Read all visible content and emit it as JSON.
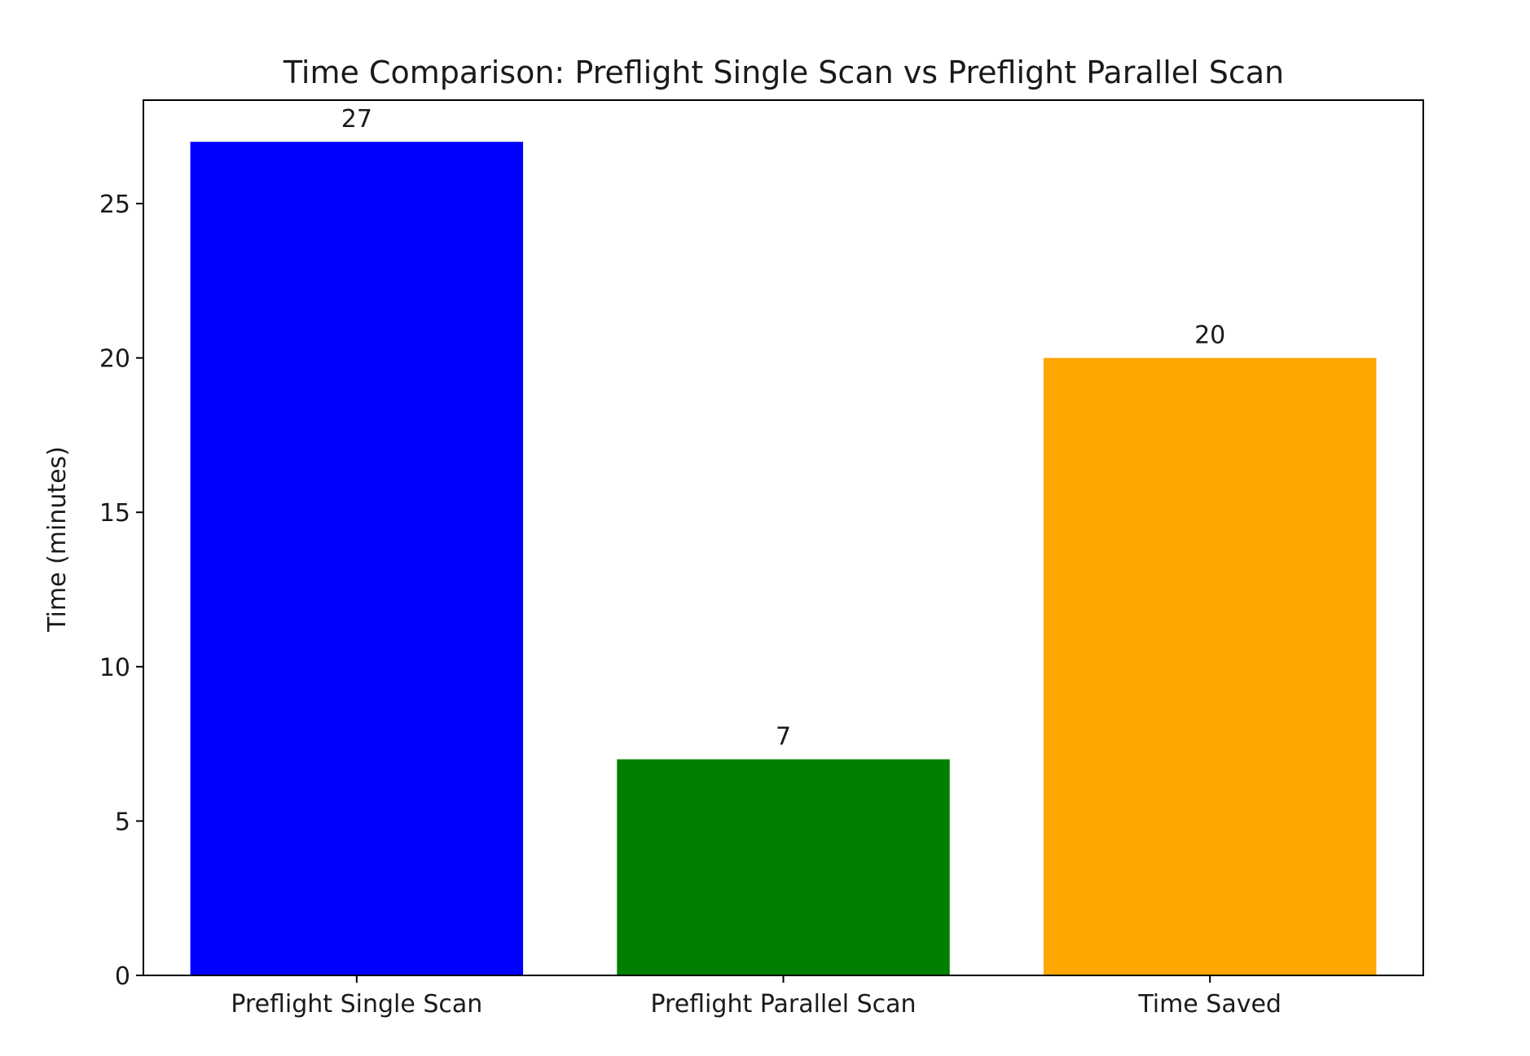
{
  "chart_data": {
    "type": "bar",
    "title": "Time Comparison: Preflight Single Scan vs Preflight Parallel Scan",
    "xlabel": "",
    "ylabel": "Time (minutes)",
    "categories": [
      "Preflight Single Scan",
      "Preflight Parallel Scan",
      "Time Saved"
    ],
    "values": [
      27,
      7,
      20
    ],
    "colors": [
      "#0000ff",
      "#008000",
      "#ffa500"
    ],
    "data_labels": [
      "27",
      "7",
      "20"
    ],
    "ylim": [
      0,
      28.35
    ],
    "yticks": [
      0,
      5,
      10,
      15,
      20,
      25
    ],
    "grid": false,
    "legend": "none"
  }
}
